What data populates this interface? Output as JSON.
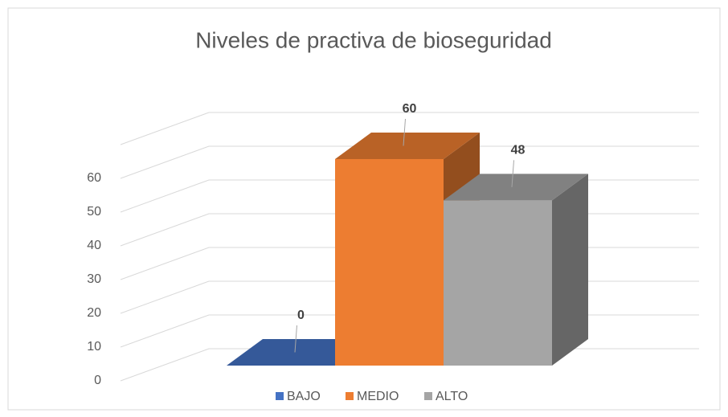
{
  "chart_data": {
    "type": "bar3d",
    "title": "Niveles de practiva de bioseguridad",
    "series": [
      {
        "name": "BAJO",
        "color": "#4472c4",
        "values": [
          0
        ]
      },
      {
        "name": "MEDIO",
        "color": "#ed7d31",
        "values": [
          60
        ]
      },
      {
        "name": "ALTO",
        "color": "#a5a5a5",
        "values": [
          48
        ]
      }
    ],
    "ylim": [
      0,
      70
    ],
    "yticks": [
      0,
      10,
      20,
      30,
      40,
      50,
      60
    ],
    "grid": true,
    "legend": "bottom"
  }
}
